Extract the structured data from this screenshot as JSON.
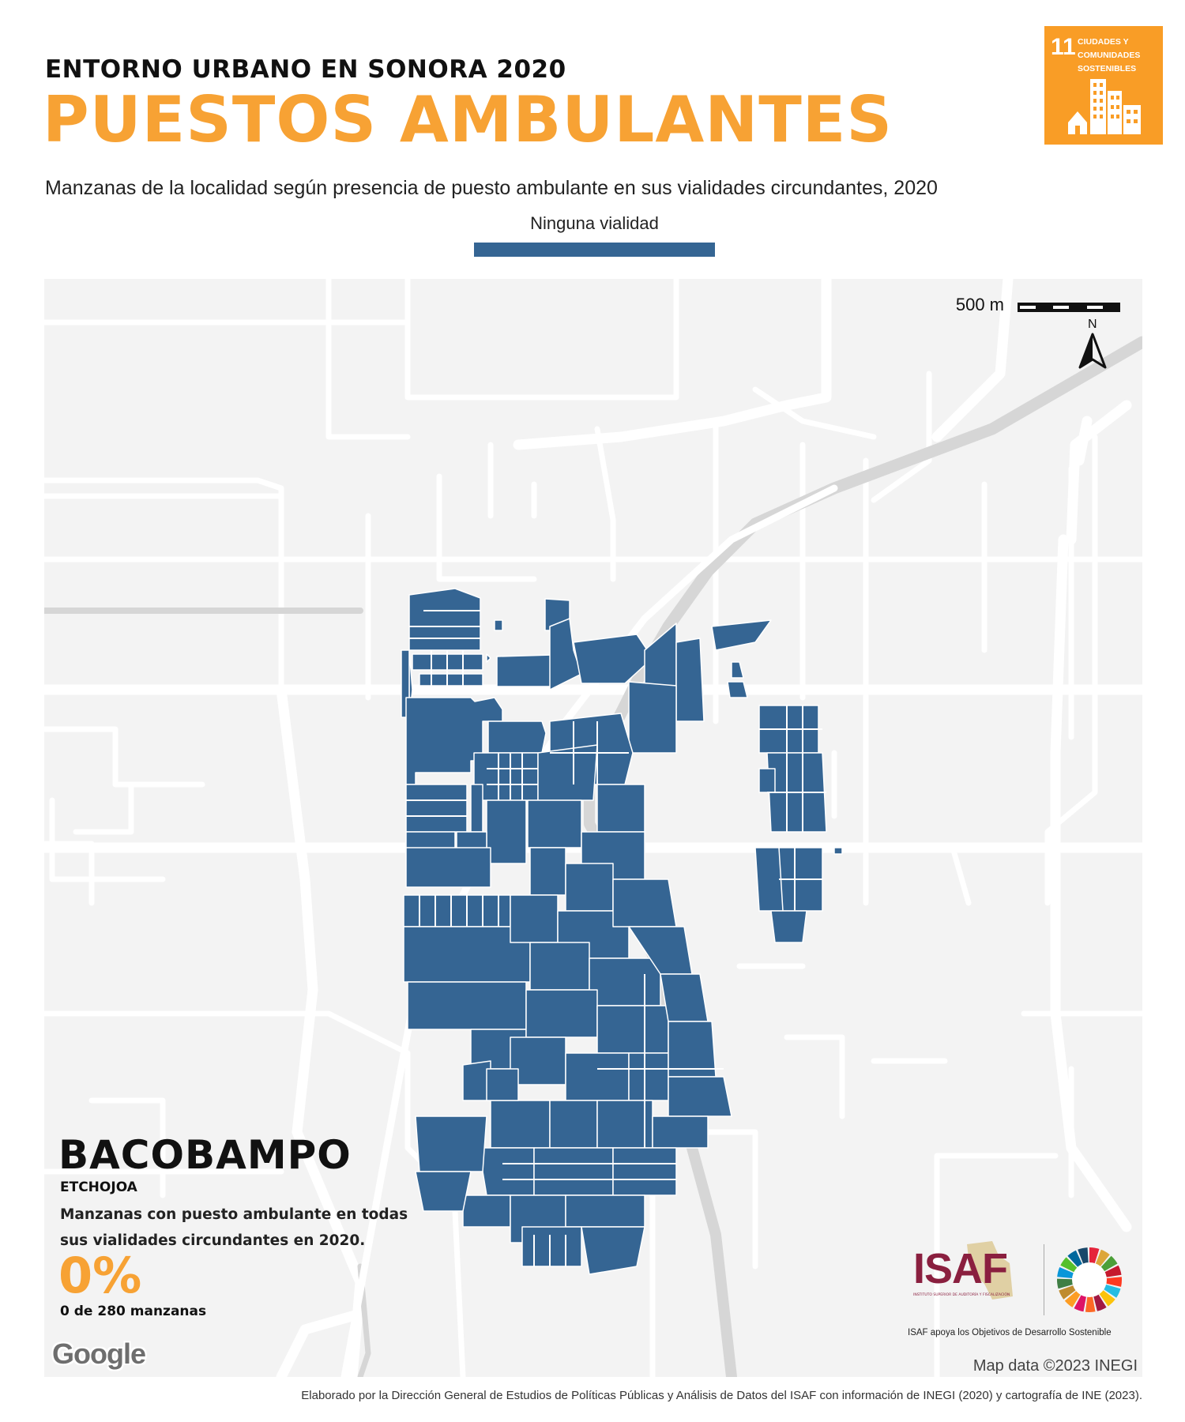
{
  "header": {
    "kicker": "ENTORNO URBANO EN SONORA 2020",
    "title": "PUESTOS AMBULANTES",
    "subtitle": "Manzanas de la localidad según presencia de puesto ambulante en sus vialidades circundantes, 2020"
  },
  "legend": {
    "label": "Ninguna vialidad",
    "color": "#356593"
  },
  "sdg_badge": {
    "number": "11",
    "text": "CIUDADES Y COMUNIDADES SOSTENIBLES",
    "color": "#f99d26",
    "icon": "city-buildings-icon"
  },
  "map": {
    "scale_label": "500 m",
    "north_label": "N",
    "attribution": "Map data ©2023 INEGI",
    "google_logo": "Google",
    "background": "#f3f3f3",
    "road_color": "#ffffff",
    "highway_color": "#d6d6d6"
  },
  "stats": {
    "localidad": "BACOBAMPO",
    "municipio": "ETCHOJOA",
    "description": "Manzanas con puesto ambulante en todas sus vialidades circundantes en 2020.",
    "percent": "0%",
    "count": "0 de 280 manzanas",
    "accent": "#f7a234"
  },
  "logos": {
    "isaf": "ISAF",
    "isaf_sub": "INSTITUTO SUPERIOR DE AUDITORÍA Y FISCALIZACIÓN",
    "isaf_tagline": "ISAF apoya los Objetivos de Desarrollo Sostenible"
  },
  "footer": {
    "credits": "Elaborado por la Dirección General de Estudios de Políticas Públicas y Análisis de Datos del ISAF con información de INEGI (2020) y cartografía de INE (2023)."
  }
}
